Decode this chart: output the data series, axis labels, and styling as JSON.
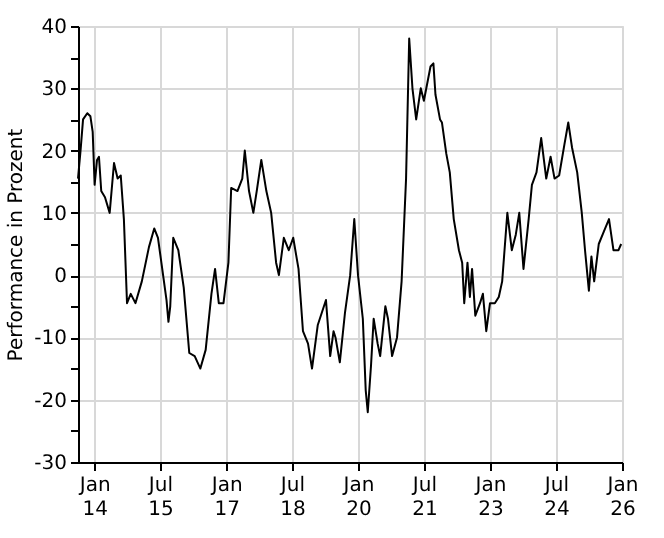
{
  "chart_data": {
    "type": "line",
    "ylabel": "Performance in Prozent",
    "x": [
      "2013-08-20",
      "2013-09-10",
      "2013-10-01",
      "2013-11-05",
      "2013-12-01",
      "2013-12-20",
      "2014-01-05",
      "2014-01-25",
      "2014-02-10",
      "2014-03-01",
      "2014-04-01",
      "2014-05-10",
      "2014-06-15",
      "2014-07-15",
      "2014-08-10",
      "2014-09-05",
      "2014-10-01",
      "2014-11-01",
      "2014-12-10",
      "2015-02-01",
      "2015-04-01",
      "2015-05-15",
      "2015-06-15",
      "2015-08-25",
      "2015-09-10",
      "2015-09-25",
      "2015-10-20",
      "2015-12-01",
      "2016-01-15",
      "2016-03-01",
      "2016-04-15",
      "2016-06-01",
      "2016-07-15",
      "2016-09-01",
      "2016-10-01",
      "2016-11-01",
      "2016-12-10",
      "2017-01-20",
      "2017-02-12",
      "2017-04-05",
      "2017-05-15",
      "2017-06-05",
      "2017-07-10",
      "2017-08-15",
      "2017-09-12",
      "2017-10-20",
      "2017-12-01",
      "2018-01-10",
      "2018-02-20",
      "2018-03-15",
      "2018-04-25",
      "2018-06-05",
      "2018-07-12",
      "2018-08-25",
      "2018-10-01",
      "2018-11-12",
      "2018-12-15",
      "2019-02-01",
      "2019-04-10",
      "2019-05-15",
      "2019-06-12",
      "2019-06-28",
      "2019-08-03",
      "2019-09-15",
      "2019-10-28",
      "2019-12-01",
      "2020-01-01",
      "2020-02-10",
      "2020-03-05",
      "2020-03-22",
      "2020-04-18",
      "2020-05-10",
      "2020-06-12",
      "2020-07-03",
      "2020-08-15",
      "2020-09-06",
      "2020-10-10",
      "2020-11-20",
      "2020-12-28",
      "2021-02-03",
      "2021-03-01",
      "2021-03-28",
      "2021-04-28",
      "2021-06-05",
      "2021-07-01",
      "2021-08-25",
      "2021-09-18",
      "2021-10-05",
      "2021-11-12",
      "2021-11-28",
      "2022-01-03",
      "2022-02-01",
      "2022-03-06",
      "2022-04-18",
      "2022-05-15",
      "2022-06-01",
      "2022-06-28",
      "2022-07-18",
      "2022-08-05",
      "2022-09-01",
      "2022-10-10",
      "2022-11-03",
      "2022-12-01",
      "2023-01-01",
      "2023-02-10",
      "2023-03-15",
      "2023-04-12",
      "2023-05-25",
      "2023-07-01",
      "2023-08-03",
      "2023-09-01",
      "2023-10-06",
      "2023-11-18",
      "2023-12-15",
      "2024-01-22",
      "2024-03-01",
      "2024-04-12",
      "2024-05-18",
      "2024-06-20",
      "2024-07-28",
      "2024-09-10",
      "2024-10-12",
      "2024-11-12",
      "2024-12-25",
      "2025-02-01",
      "2025-02-28",
      "2025-04-01",
      "2025-04-22",
      "2025-05-15",
      "2025-06-22",
      "2025-08-03",
      "2025-09-15",
      "2025-10-22",
      "2025-12-03",
      "2025-12-25"
    ],
    "series": [
      {
        "color": "#000000",
        "values": [
          15.5,
          20,
          25,
          26,
          25.5,
          23,
          14.5,
          18.5,
          19,
          13.5,
          12.5,
          10,
          18,
          15.5,
          16,
          9,
          -4.5,
          -3,
          -4.5,
          -1,
          4.5,
          7.5,
          6,
          -4,
          -7.5,
          -5,
          6,
          4,
          -2,
          -12.5,
          -13,
          -15,
          -12,
          -3,
          1,
          -4.5,
          -4.5,
          2,
          14,
          13.5,
          15.5,
          20,
          13.5,
          10,
          13.5,
          18.5,
          13.5,
          10,
          2,
          0,
          6,
          4,
          6,
          1,
          -9,
          -11,
          -15,
          -8,
          -4,
          -13,
          -9,
          -10,
          -14,
          -6,
          0,
          9,
          0,
          -7,
          -18.5,
          -22,
          -14.5,
          -7,
          -11,
          -13,
          -5,
          -7,
          -13,
          -10,
          -1,
          15.5,
          38,
          30,
          25,
          30,
          28,
          33.5,
          34,
          29,
          25,
          24.5,
          19.5,
          16.5,
          9,
          4,
          2,
          -4.5,
          2,
          -3.5,
          1,
          -6.5,
          -4.5,
          -3,
          -9,
          -4.5,
          -4.5,
          -3.5,
          -1,
          10,
          4,
          6.5,
          10,
          1,
          9,
          14.5,
          16.5,
          22,
          15.5,
          19,
          15.5,
          16,
          21,
          24.5,
          20.5,
          16.5,
          10,
          4,
          -2.5,
          3,
          -1,
          5,
          7,
          9,
          4,
          4,
          5
        ]
      }
    ],
    "xlim": [
      "2013-08-20",
      "2026-01-01"
    ],
    "xticks": [
      {
        "value": "2014-01-01",
        "label": "Jan\n14"
      },
      {
        "value": "2015-07-01",
        "label": "Jul\n15"
      },
      {
        "value": "2017-01-01",
        "label": "Jan\n17"
      },
      {
        "value": "2018-07-01",
        "label": "Jul\n18"
      },
      {
        "value": "2020-01-01",
        "label": "Jan\n20"
      },
      {
        "value": "2021-07-01",
        "label": "Jul\n21"
      },
      {
        "value": "2023-01-01",
        "label": "Jan\n23"
      },
      {
        "value": "2024-07-01",
        "label": "Jul\n24"
      },
      {
        "value": "2026-01-01",
        "label": "Jan\n26"
      }
    ],
    "ylim": [
      -30,
      40
    ],
    "yticks": [
      -30,
      {
        "value": -25,
        "label": null
      },
      -20,
      {
        "value": -15,
        "label": null
      },
      -10,
      {
        "value": -5,
        "label": null
      },
      0,
      {
        "value": 5,
        "label": null
      },
      10,
      {
        "value": 15,
        "label": null
      },
      20,
      {
        "value": 25,
        "label": null
      },
      30,
      {
        "value": 35,
        "label": null
      },
      40
    ],
    "grid": true,
    "line_style": "solid",
    "marker": "none"
  }
}
